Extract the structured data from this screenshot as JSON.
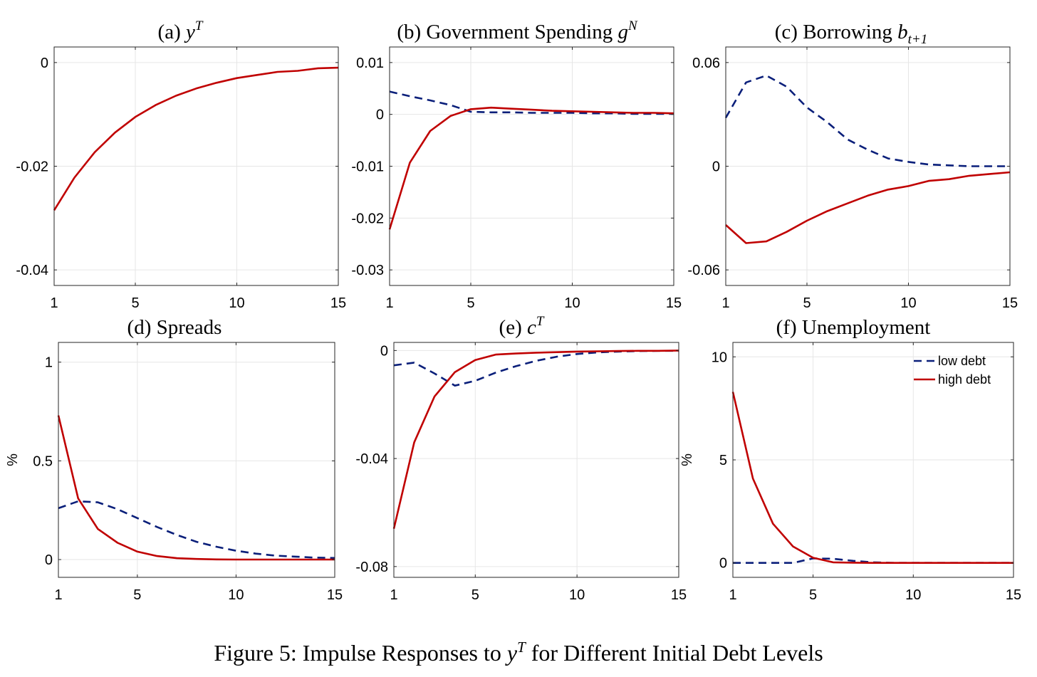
{
  "figure": {
    "caption_prefix": "Figure 5: Impulse Responses to ",
    "caption_var": "y",
    "caption_sup": "T",
    "caption_suffix": " for Different Initial Debt Levels"
  },
  "colors": {
    "low_debt": "#0a1f7a",
    "high_debt": "#c00000"
  },
  "chart_data": [
    {
      "id": "a",
      "type": "line",
      "title": {
        "prefix": "(a) ",
        "math_base": "y",
        "math_sup": "T",
        "math_sub": ""
      },
      "xlabel": "",
      "ylabel": "",
      "xlim": [
        1,
        15
      ],
      "ylim": [
        -0.043,
        0.003
      ],
      "xticks": [
        1,
        5,
        10,
        15
      ],
      "xtick_labels": [
        "1",
        "5",
        "10",
        "15"
      ],
      "yticks": [
        0,
        -0.02,
        -0.04
      ],
      "ytick_labels": [
        "0",
        "-0.02",
        "-0.04"
      ],
      "grid": true,
      "x": [
        1,
        2,
        3,
        4,
        5,
        6,
        7,
        8,
        9,
        10,
        11,
        12,
        13,
        14,
        15
      ],
      "series": [
        {
          "name": "high debt",
          "style": "solid",
          "values": [
            -0.0285,
            -0.0222,
            -0.0173,
            -0.0135,
            -0.0105,
            -0.0082,
            -0.0064,
            -0.005,
            -0.0039,
            -0.003,
            -0.0024,
            -0.0018,
            -0.0016,
            -0.0011,
            -0.001
          ]
        }
      ]
    },
    {
      "id": "b",
      "type": "line",
      "title": {
        "prefix": "(b) Government Spending ",
        "math_base": "g",
        "math_sup": "N",
        "math_sub": ""
      },
      "xlabel": "",
      "ylabel": "",
      "xlim": [
        1,
        15
      ],
      "ylim": [
        -0.033,
        0.013
      ],
      "xticks": [
        1,
        5,
        10,
        15
      ],
      "xtick_labels": [
        "1",
        "5",
        "10",
        "15"
      ],
      "yticks": [
        0.01,
        0,
        -0.01,
        -0.02,
        -0.03
      ],
      "ytick_labels": [
        "0.01",
        "0",
        "-0.01",
        "-0.02",
        "-0.03"
      ],
      "grid": true,
      "x": [
        1,
        2,
        3,
        4,
        5,
        6,
        7,
        8,
        9,
        10,
        11,
        12,
        13,
        14,
        15
      ],
      "series": [
        {
          "name": "low debt",
          "style": "dashed",
          "values": [
            0.0044,
            0.0035,
            0.0027,
            0.0018,
            0.0005,
            0.0004,
            0.0004,
            0.0003,
            0.0003,
            0.0003,
            0.0002,
            0.0002,
            0.0001,
            0.0001,
            0.0001
          ]
        },
        {
          "name": "high debt",
          "style": "solid",
          "values": [
            -0.0222,
            -0.0093,
            -0.0032,
            -0.0003,
            0.001,
            0.0013,
            0.0011,
            0.0009,
            0.0007,
            0.0006,
            0.0005,
            0.0004,
            0.0003,
            0.0003,
            0.0002
          ]
        }
      ]
    },
    {
      "id": "c",
      "type": "line",
      "title": {
        "prefix": "(c) Borrowing ",
        "math_base": "b",
        "math_sup": "",
        "math_sub": "t+1"
      },
      "xlabel": "",
      "ylabel": "",
      "xlim": [
        1,
        15
      ],
      "ylim": [
        -0.069,
        0.069
      ],
      "xticks": [
        1,
        5,
        10,
        15
      ],
      "xtick_labels": [
        "1",
        "5",
        "10",
        "15"
      ],
      "yticks": [
        0.06,
        0,
        -0.06
      ],
      "ytick_labels": [
        "0.06",
        "0",
        "-0.06"
      ],
      "grid": true,
      "x": [
        1,
        2,
        3,
        4,
        5,
        6,
        7,
        8,
        9,
        10,
        11,
        12,
        13,
        14,
        15
      ],
      "series": [
        {
          "name": "low debt",
          "style": "dashed",
          "values": [
            0.028,
            0.0485,
            0.0525,
            0.046,
            0.034,
            0.0255,
            0.0155,
            0.0095,
            0.0045,
            0.0025,
            0.001,
            0.0005,
            0.0,
            0.0,
            0.0
          ]
        },
        {
          "name": "high debt",
          "style": "solid",
          "values": [
            -0.034,
            -0.0445,
            -0.0435,
            -0.038,
            -0.0315,
            -0.026,
            -0.0215,
            -0.017,
            -0.0135,
            -0.0115,
            -0.0085,
            -0.0075,
            -0.0055,
            -0.0045,
            -0.0035
          ]
        }
      ]
    },
    {
      "id": "d",
      "type": "line",
      "title": {
        "prefix": "(d) Spreads",
        "math_base": "",
        "math_sup": "",
        "math_sub": ""
      },
      "xlabel": "",
      "ylabel": "%",
      "xlim": [
        1,
        15
      ],
      "ylim": [
        -0.09,
        1.1
      ],
      "xticks": [
        1,
        5,
        10,
        15
      ],
      "xtick_labels": [
        "1",
        "5",
        "10",
        "15"
      ],
      "yticks": [
        1,
        0.5,
        0
      ],
      "ytick_labels": [
        "1",
        "0.5",
        "0"
      ],
      "grid": true,
      "x": [
        1,
        2,
        3,
        4,
        5,
        6,
        7,
        8,
        9,
        10,
        11,
        12,
        13,
        14,
        15
      ],
      "series": [
        {
          "name": "low debt",
          "style": "dashed",
          "values": [
            0.26,
            0.295,
            0.29,
            0.255,
            0.21,
            0.165,
            0.125,
            0.09,
            0.065,
            0.045,
            0.03,
            0.02,
            0.015,
            0.01,
            0.008
          ]
        },
        {
          "name": "high debt",
          "style": "solid",
          "values": [
            0.73,
            0.31,
            0.155,
            0.085,
            0.04,
            0.018,
            0.007,
            0.003,
            0.001,
            0.0,
            0.0,
            0.0,
            0.0,
            0.0,
            0.0
          ]
        }
      ]
    },
    {
      "id": "e",
      "type": "line",
      "title": {
        "prefix": "(e) ",
        "math_base": "c",
        "math_sup": "T",
        "math_sub": ""
      },
      "xlabel": "",
      "ylabel": "",
      "xlim": [
        1,
        15
      ],
      "ylim": [
        -0.084,
        0.003
      ],
      "xticks": [
        1,
        5,
        10,
        15
      ],
      "xtick_labels": [
        "1",
        "5",
        "10",
        "15"
      ],
      "yticks": [
        0,
        -0.04,
        -0.08
      ],
      "ytick_labels": [
        "0",
        "-0.04",
        "-0.08"
      ],
      "grid": true,
      "x": [
        1,
        2,
        3,
        4,
        5,
        6,
        7,
        8,
        9,
        10,
        11,
        12,
        13,
        14,
        15
      ],
      "series": [
        {
          "name": "low debt",
          "style": "dashed",
          "values": [
            -0.0055,
            -0.0045,
            -0.0085,
            -0.013,
            -0.0112,
            -0.0082,
            -0.0058,
            -0.0038,
            -0.0023,
            -0.0013,
            -0.0007,
            -0.0004,
            -0.0002,
            -0.0001,
            -0.0001
          ]
        },
        {
          "name": "high debt",
          "style": "solid",
          "values": [
            -0.066,
            -0.034,
            -0.017,
            -0.008,
            -0.0035,
            -0.0015,
            -0.0011,
            -0.0008,
            -0.0006,
            -0.0004,
            -0.0003,
            -0.0002,
            -0.0001,
            -0.0001,
            0.0
          ]
        }
      ]
    },
    {
      "id": "f",
      "type": "line",
      "title": {
        "prefix": "(f) Unemployment",
        "math_base": "",
        "math_sup": "",
        "math_sub": ""
      },
      "xlabel": "",
      "ylabel": "%",
      "xlim": [
        1,
        15
      ],
      "ylim": [
        -0.7,
        10.7
      ],
      "xticks": [
        1,
        5,
        10,
        15
      ],
      "xtick_labels": [
        "1",
        "5",
        "10",
        "15"
      ],
      "yticks": [
        10,
        5,
        0
      ],
      "ytick_labels": [
        "10",
        "5",
        "0"
      ],
      "grid": true,
      "legend": {
        "position": "top-right",
        "entries": [
          "low debt",
          "high debt"
        ]
      },
      "x": [
        1,
        2,
        3,
        4,
        5,
        6,
        7,
        8,
        9,
        10,
        11,
        12,
        13,
        14,
        15
      ],
      "series": [
        {
          "name": "low debt",
          "style": "dashed",
          "values": [
            0.0,
            0.0,
            0.0,
            0.0,
            0.22,
            0.2,
            0.1,
            0.03,
            0.0,
            0.0,
            0.0,
            0.0,
            0.0,
            0.0,
            0.0
          ]
        },
        {
          "name": "high debt",
          "style": "solid",
          "values": [
            8.3,
            4.1,
            1.9,
            0.8,
            0.25,
            0.03,
            0.01,
            0.0,
            0.0,
            0.0,
            0.0,
            0.0,
            0.0,
            0.0,
            0.0
          ]
        }
      ]
    }
  ]
}
